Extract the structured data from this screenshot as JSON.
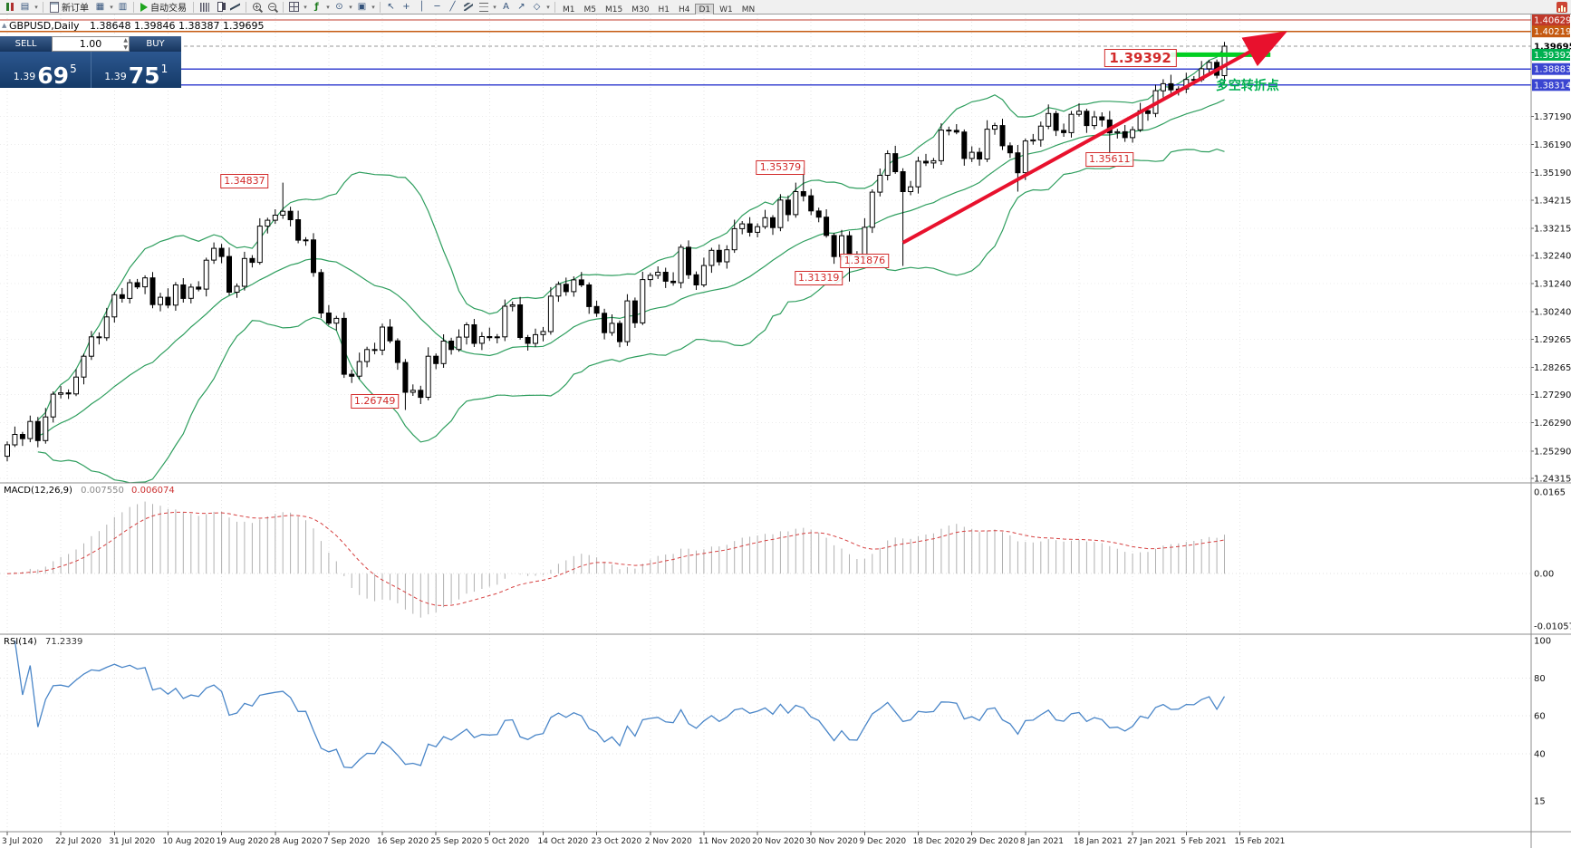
{
  "toolbar": {
    "new_order_label": "新订单",
    "autotrading_label": "自动交易",
    "timeframes": [
      {
        "label": "M1",
        "active": false
      },
      {
        "label": "M5",
        "active": false
      },
      {
        "label": "M15",
        "active": false
      },
      {
        "label": "M30",
        "active": false
      },
      {
        "label": "H1",
        "active": false
      },
      {
        "label": "H4",
        "active": false
      },
      {
        "label": "D1",
        "active": true
      },
      {
        "label": "W1",
        "active": false
      },
      {
        "label": "MN",
        "active": false
      }
    ],
    "glyphs": {
      "profiles": "▤",
      "market_watch": "▦",
      "navigator": "▥",
      "indicators": "ƒ",
      "periods": "⊙",
      "templates": "▣",
      "cursor": "↖",
      "crosshair": "+",
      "vline": "│",
      "hline": "─",
      "trendline": "╱",
      "text": "A",
      "arrows": "↗",
      "shapes": "◇",
      "caret": "▾",
      "zoom_in": "+",
      "zoom_out": "−"
    }
  },
  "chart": {
    "title_symbol": "GBPUSD,Daily",
    "title_ohlc": "1.38648 1.39846 1.38387 1.39695",
    "one_click": {
      "sell_label": "SELL",
      "buy_label": "BUY",
      "volume": "1.00",
      "sell_price_small": "1.39",
      "sell_price_big": "69",
      "sell_price_pip": "5",
      "buy_price_small": "1.39",
      "buy_price_big": "75",
      "buy_price_pip": "1"
    }
  },
  "chart_data": {
    "type": "candlestick",
    "symbol": "GBPUSD",
    "timeframe": "Daily",
    "y_range": {
      "top": 1.40629,
      "bottom": 1.24315
    },
    "price_axis_ticks": [
      "1.37190",
      "1.36190",
      "1.35190",
      "1.34215",
      "1.33215",
      "1.32240",
      "1.31240",
      "1.30240",
      "1.29265",
      "1.28265",
      "1.27290",
      "1.26290",
      "1.25290",
      "1.24315"
    ],
    "date_ticks": [
      "3 Jul 2020",
      "22 Jul 2020",
      "31 Jul 2020",
      "10 Aug 2020",
      "19 Aug 2020",
      "28 Aug 2020",
      "7 Sep 2020",
      "16 Sep 2020",
      "25 Sep 2020",
      "5 Oct 2020",
      "14 Oct 2020",
      "23 Oct 2020",
      "2 Nov 2020",
      "11 Nov 2020",
      "20 Nov 2020",
      "30 Nov 2020",
      "9 Dec 2020",
      "18 Dec 2020",
      "29 Dec 2020",
      "8 Jan 2021",
      "18 Jan 2021",
      "27 Jan 2021",
      "5 Feb 2021",
      "15 Feb 2021"
    ],
    "candles": [
      [
        1.251,
        1.2563,
        1.2492,
        1.2551
      ],
      [
        1.2551,
        1.2616,
        1.2543,
        1.2588
      ],
      [
        1.2588,
        1.2597,
        1.2547,
        1.2573
      ],
      [
        1.2573,
        1.2655,
        1.256,
        1.2634
      ],
      [
        1.2634,
        1.265,
        1.2542,
        1.2566
      ],
      [
        1.2566,
        1.2682,
        1.2555,
        1.265
      ],
      [
        1.265,
        1.2741,
        1.263,
        1.2731
      ],
      [
        1.2731,
        1.276,
        1.2716,
        1.2736
      ],
      [
        1.2736,
        1.2748,
        1.2714,
        1.2732
      ],
      [
        1.2732,
        1.282,
        1.2724,
        1.2792
      ],
      [
        1.2792,
        1.2875,
        1.2766,
        1.2866
      ],
      [
        1.2866,
        1.2956,
        1.2853,
        1.2935
      ],
      [
        1.2935,
        1.2951,
        1.2908,
        1.2932
      ],
      [
        1.2932,
        1.3038,
        1.2921,
        1.3006
      ],
      [
        1.3006,
        1.3095,
        1.2986,
        1.3085
      ],
      [
        1.3085,
        1.3109,
        1.3057,
        1.3072
      ],
      [
        1.3072,
        1.314,
        1.3054,
        1.3128
      ],
      [
        1.3128,
        1.3141,
        1.3105,
        1.3113
      ],
      [
        1.3113,
        1.3154,
        1.3087,
        1.3145
      ],
      [
        1.3145,
        1.3166,
        1.3037,
        1.305
      ],
      [
        1.305,
        1.3092,
        1.3026,
        1.3076
      ],
      [
        1.3076,
        1.3108,
        1.3037,
        1.3048
      ],
      [
        1.3048,
        1.313,
        1.3028,
        1.312
      ],
      [
        1.312,
        1.3144,
        1.3057,
        1.3072
      ],
      [
        1.3072,
        1.3124,
        1.3054,
        1.3112
      ],
      [
        1.3112,
        1.3133,
        1.3097,
        1.3105
      ],
      [
        1.3105,
        1.3217,
        1.3079,
        1.3208
      ],
      [
        1.3208,
        1.3271,
        1.3195,
        1.325
      ],
      [
        1.325,
        1.3266,
        1.3197,
        1.3221
      ],
      [
        1.3221,
        1.3253,
        1.3083,
        1.3094
      ],
      [
        1.3094,
        1.3125,
        1.3074,
        1.3115
      ],
      [
        1.3115,
        1.3238,
        1.31,
        1.3214
      ],
      [
        1.3214,
        1.3226,
        1.3182,
        1.32
      ],
      [
        1.32,
        1.3357,
        1.3192,
        1.3329
      ],
      [
        1.3329,
        1.3359,
        1.3303,
        1.335
      ],
      [
        1.335,
        1.3389,
        1.3337,
        1.3368
      ],
      [
        1.3368,
        1.34837,
        1.3355,
        1.3382
      ],
      [
        1.3382,
        1.3398,
        1.3328,
        1.3352
      ],
      [
        1.3352,
        1.3384,
        1.3268,
        1.3279
      ],
      [
        1.3279,
        1.329,
        1.3259,
        1.328
      ],
      [
        1.328,
        1.3304,
        1.3149,
        1.3164
      ],
      [
        1.3164,
        1.3176,
        1.3002,
        1.302
      ],
      [
        1.302,
        1.3048,
        1.2976,
        1.2984
      ],
      [
        1.2984,
        1.301,
        1.2958,
        1.3001
      ],
      [
        1.3001,
        1.3022,
        1.2789,
        1.2802
      ],
      [
        1.2802,
        1.2818,
        1.2771,
        1.2795
      ],
      [
        1.2795,
        1.2879,
        1.2784,
        1.2847
      ],
      [
        1.2847,
        1.29,
        1.2827,
        1.289
      ],
      [
        1.289,
        1.2914,
        1.2873,
        1.2888
      ],
      [
        1.2888,
        1.2982,
        1.287,
        1.297
      ],
      [
        1.297,
        1.2998,
        1.2913,
        1.2921
      ],
      [
        1.2921,
        1.293,
        1.2818,
        1.2844
      ],
      [
        1.2844,
        1.2856,
        1.26749,
        1.2738
      ],
      [
        1.2738,
        1.2766,
        1.2725,
        1.2745
      ],
      [
        1.2745,
        1.2761,
        1.2696,
        1.272
      ],
      [
        1.272,
        1.2898,
        1.2709,
        1.2866
      ],
      [
        1.2866,
        1.2876,
        1.282,
        1.284
      ],
      [
        1.284,
        1.2944,
        1.2825,
        1.292
      ],
      [
        1.292,
        1.2932,
        1.2872,
        1.289
      ],
      [
        1.289,
        1.2962,
        1.2882,
        1.2934
      ],
      [
        1.2934,
        1.2987,
        1.2908,
        1.2978
      ],
      [
        1.2978,
        1.2999,
        1.2899,
        1.2912
      ],
      [
        1.2912,
        1.2952,
        1.2888,
        1.2936
      ],
      [
        1.2936,
        1.2968,
        1.2921,
        1.2932
      ],
      [
        1.2932,
        1.2945,
        1.2912,
        1.2935
      ],
      [
        1.2935,
        1.3068,
        1.292,
        1.3044
      ],
      [
        1.3044,
        1.3061,
        1.3026,
        1.3049
      ],
      [
        1.3049,
        1.3077,
        1.2925,
        1.2933
      ],
      [
        1.2933,
        1.2942,
        1.2886,
        1.2912
      ],
      [
        1.2912,
        1.2964,
        1.2899,
        1.2943
      ],
      [
        1.2943,
        1.297,
        1.2919,
        1.2954
      ],
      [
        1.2954,
        1.3112,
        1.2943,
        1.308
      ],
      [
        1.308,
        1.3132,
        1.306,
        1.3122
      ],
      [
        1.3122,
        1.3146,
        1.3081,
        1.3096
      ],
      [
        1.3096,
        1.315,
        1.3078,
        1.3138
      ],
      [
        1.3138,
        1.3166,
        1.3112,
        1.312
      ],
      [
        1.312,
        1.3129,
        1.3017,
        1.3043
      ],
      [
        1.3043,
        1.3064,
        1.3006,
        1.3019
      ],
      [
        1.3019,
        1.3035,
        1.2926,
        1.295
      ],
      [
        1.295,
        1.3015,
        1.2939,
        1.2983
      ],
      [
        1.2983,
        1.2993,
        1.2898,
        1.2918
      ],
      [
        1.2918,
        1.3087,
        1.2903,
        1.3063
      ],
      [
        1.3063,
        1.3075,
        1.2967,
        1.2985
      ],
      [
        1.2985,
        1.3167,
        1.2977,
        1.3139
      ],
      [
        1.3139,
        1.3163,
        1.3113,
        1.3154
      ],
      [
        1.3154,
        1.3186,
        1.3141,
        1.3165
      ],
      [
        1.3165,
        1.3181,
        1.3109,
        1.3133
      ],
      [
        1.3133,
        1.3165,
        1.3117,
        1.3128
      ],
      [
        1.3128,
        1.3264,
        1.3108,
        1.3254
      ],
      [
        1.3254,
        1.3278,
        1.3141,
        1.3156
      ],
      [
        1.3156,
        1.3168,
        1.3102,
        1.312
      ],
      [
        1.312,
        1.3217,
        1.3112,
        1.3189
      ],
      [
        1.3189,
        1.3252,
        1.3163,
        1.3243
      ],
      [
        1.3243,
        1.3264,
        1.3189,
        1.3202
      ],
      [
        1.3202,
        1.3261,
        1.3178,
        1.3245
      ],
      [
        1.3245,
        1.3352,
        1.3234,
        1.332
      ],
      [
        1.332,
        1.3347,
        1.33,
        1.3337
      ],
      [
        1.3337,
        1.3361,
        1.3292,
        1.3307
      ],
      [
        1.3307,
        1.3339,
        1.3289,
        1.3327
      ],
      [
        1.3327,
        1.3387,
        1.3319,
        1.3359
      ],
      [
        1.3359,
        1.3368,
        1.3298,
        1.3324
      ],
      [
        1.3324,
        1.3443,
        1.3311,
        1.3422
      ],
      [
        1.3422,
        1.3438,
        1.3346,
        1.337
      ],
      [
        1.337,
        1.3484,
        1.3359,
        1.3452
      ],
      [
        1.3452,
        1.35379,
        1.3417,
        1.3437
      ],
      [
        1.3437,
        1.3461,
        1.3368,
        1.3383
      ],
      [
        1.3383,
        1.3395,
        1.3343,
        1.3361
      ],
      [
        1.3361,
        1.3389,
        1.3288,
        1.3296
      ],
      [
        1.3296,
        1.3305,
        1.3195,
        1.3221
      ],
      [
        1.3221,
        1.3316,
        1.3208,
        1.3295
      ],
      [
        1.3295,
        1.3311,
        1.31319,
        1.3224
      ],
      [
        1.3224,
        1.324,
        1.3198,
        1.3222
      ],
      [
        1.3222,
        1.3357,
        1.3211,
        1.3325
      ],
      [
        1.3325,
        1.346,
        1.3305,
        1.345
      ],
      [
        1.345,
        1.3534,
        1.3435,
        1.351
      ],
      [
        1.351,
        1.3599,
        1.3492,
        1.3587
      ],
      [
        1.3587,
        1.3615,
        1.3515,
        1.3523
      ],
      [
        1.3523,
        1.3535,
        1.31876,
        1.3452
      ],
      [
        1.3452,
        1.349,
        1.3439,
        1.3469
      ],
      [
        1.3469,
        1.3576,
        1.3445,
        1.356
      ],
      [
        1.356,
        1.3586,
        1.3543,
        1.3554
      ],
      [
        1.3554,
        1.3572,
        1.3534,
        1.3562
      ],
      [
        1.3562,
        1.3695,
        1.3547,
        1.3671
      ],
      [
        1.3671,
        1.3683,
        1.3652,
        1.367
      ],
      [
        1.367,
        1.3692,
        1.3656,
        1.3664
      ],
      [
        1.3664,
        1.3673,
        1.3544,
        1.357
      ],
      [
        1.357,
        1.3613,
        1.3557,
        1.3592
      ],
      [
        1.3592,
        1.3608,
        1.3544,
        1.3568
      ],
      [
        1.3568,
        1.3706,
        1.3557,
        1.3674
      ],
      [
        1.3674,
        1.3697,
        1.3654,
        1.3687
      ],
      [
        1.3687,
        1.3711,
        1.36,
        1.3615
      ],
      [
        1.3615,
        1.3627,
        1.3572,
        1.359
      ],
      [
        1.359,
        1.3618,
        1.3452,
        1.3519
      ],
      [
        1.3519,
        1.3641,
        1.3493,
        1.3632
      ],
      [
        1.3632,
        1.3657,
        1.3619,
        1.3636
      ],
      [
        1.3636,
        1.3701,
        1.3612,
        1.3685
      ],
      [
        1.3685,
        1.3762,
        1.3674,
        1.373
      ],
      [
        1.373,
        1.374,
        1.365,
        1.367
      ],
      [
        1.367,
        1.3694,
        1.3647,
        1.3662
      ],
      [
        1.3662,
        1.3739,
        1.3644,
        1.3727
      ],
      [
        1.3727,
        1.3766,
        1.3719,
        1.3738
      ],
      [
        1.3738,
        1.3747,
        1.3661,
        1.3687
      ],
      [
        1.3687,
        1.3739,
        1.3674,
        1.3718
      ],
      [
        1.3718,
        1.3734,
        1.3683,
        1.3707
      ],
      [
        1.3707,
        1.3739,
        1.35611,
        1.3661
      ],
      [
        1.3661,
        1.3675,
        1.3641,
        1.3665
      ],
      [
        1.3665,
        1.3689,
        1.3629,
        1.3644
      ],
      [
        1.3644,
        1.3684,
        1.3626,
        1.3672
      ],
      [
        1.3672,
        1.3768,
        1.3664,
        1.374
      ],
      [
        1.374,
        1.3749,
        1.3704,
        1.373
      ],
      [
        1.373,
        1.3832,
        1.3717,
        1.3811
      ],
      [
        1.3811,
        1.3852,
        1.3787,
        1.3836
      ],
      [
        1.3836,
        1.3868,
        1.3803,
        1.3814
      ],
      [
        1.3814,
        1.3827,
        1.3794,
        1.3817
      ],
      [
        1.3817,
        1.3875,
        1.3802,
        1.3851
      ],
      [
        1.3851,
        1.3863,
        1.3832,
        1.385
      ],
      [
        1.385,
        1.3917,
        1.3842,
        1.3889
      ],
      [
        1.3889,
        1.3921,
        1.3863,
        1.3912
      ],
      [
        1.3912,
        1.3922,
        1.3855,
        1.3866
      ],
      [
        1.38648,
        1.39846,
        1.38387,
        1.39695
      ]
    ],
    "special_levels": [
      {
        "label": "1.40629",
        "price": 1.40629,
        "color": "#c0392b",
        "style": "solid",
        "boxed": true
      },
      {
        "label": "1.40219",
        "price": 1.40219,
        "color": "#c55a11",
        "style": "solid",
        "boxed": true
      },
      {
        "label": "1.39695",
        "price": 1.39695,
        "color": "#979797",
        "style": "dashed",
        "boxed": false,
        "role": "bid"
      },
      {
        "label": "1.39392",
        "price": 1.39392,
        "color": "#00b050",
        "style": "none",
        "boxed": true
      },
      {
        "label": "1.38883",
        "price": 1.38883,
        "color": "#3a45d1",
        "style": "solid",
        "boxed": true
      },
      {
        "label": "1.38314",
        "price": 1.38314,
        "color": "#3a45d1",
        "style": "solid",
        "boxed": true
      }
    ],
    "green_segment": {
      "price": 1.39392,
      "from_candle": 152,
      "to_candle": 165,
      "color": "#00cf21"
    },
    "trend_arrow": {
      "from_candle": 117,
      "from_price": 1.327,
      "to_candle": 166,
      "to_price": 1.4005,
      "color": "#e8112d"
    },
    "callouts": [
      {
        "text": "1.34837",
        "candle": 31,
        "price": 1.3489,
        "large": false
      },
      {
        "text": "1.26749",
        "candle": 48,
        "price": 1.2706,
        "large": false
      },
      {
        "text": "1.35379",
        "candle": 101,
        "price": 1.3537,
        "large": false
      },
      {
        "text": "1.31319",
        "candle": 106,
        "price": 1.3144,
        "large": false
      },
      {
        "text": "1.31876",
        "candle": 112,
        "price": 1.3205,
        "large": false
      },
      {
        "text": "1.35611",
        "candle": 144,
        "price": 1.3566,
        "large": false
      },
      {
        "text": "1.39392",
        "candle": 148,
        "price": 1.3928,
        "large": true
      }
    ],
    "note": {
      "text": "多空转折点",
      "candle": 162,
      "price": 1.383,
      "color": "#00b050"
    },
    "indicators": {
      "macd": {
        "label": "MACD(12,26,9)",
        "value_main": "0.007550",
        "value_signal": "0.006074",
        "axis_ticks": [
          "0.0165",
          "0.00",
          "-0.010571"
        ],
        "fast": 12,
        "slow": 26,
        "signal": 9
      },
      "rsi": {
        "label": "RSI(14)",
        "value": "71.2339",
        "axis_ticks": [
          "100",
          "80",
          "60",
          "40",
          "15"
        ],
        "period": 14
      }
    },
    "bollinger": {
      "period": 20,
      "deviation": 2
    }
  }
}
